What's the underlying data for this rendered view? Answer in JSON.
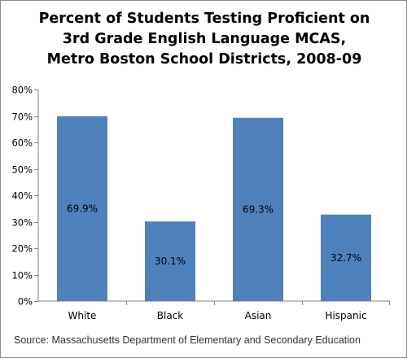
{
  "chart_data": {
    "type": "bar",
    "title_lines": [
      "Percent of Students Testing Proficient on",
      "3rd Grade English Language MCAS,",
      "Metro Boston School Districts, 2008-09"
    ],
    "categories": [
      "White",
      "Black",
      "Asian",
      "Hispanic"
    ],
    "values": [
      69.9,
      30.1,
      69.3,
      32.7
    ],
    "data_labels": [
      "69.9%",
      "30.1%",
      "69.3%",
      "32.7%"
    ],
    "y_ticks": [
      "0%",
      "10%",
      "20%",
      "30%",
      "40%",
      "50%",
      "60%",
      "70%",
      "80%"
    ],
    "ylim": [
      0,
      80
    ],
    "xlabel": "",
    "ylabel": "",
    "grid": false,
    "legend": "none",
    "bar_color": "#4f81bd",
    "source": "Source: Massachusetts Department of Elementary and Secondary Education"
  }
}
